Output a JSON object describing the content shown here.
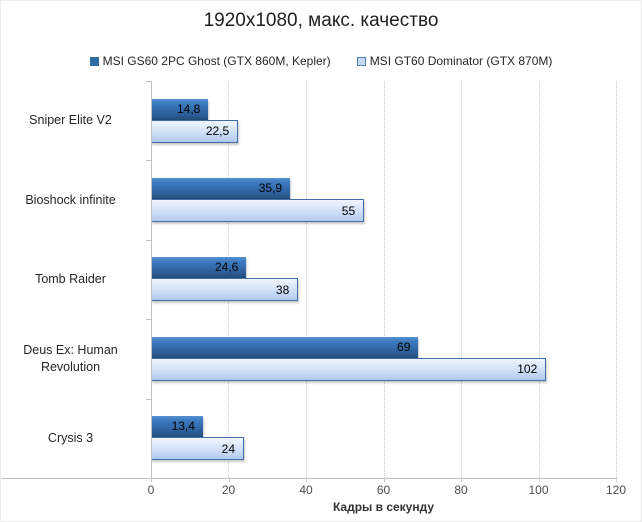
{
  "title": "1920x1080, макс. качество",
  "legend": [
    {
      "label": "MSI GS60 2PC Ghost (GTX 860M, Kepler)",
      "swatch_color": "#2e6da4"
    },
    {
      "label": "MSI GT60 Dominator (GTX 870M)",
      "swatch_color": "#c5d9f1"
    }
  ],
  "chart_data": {
    "type": "bar",
    "orientation": "horizontal",
    "title": "1920x1080, макс. качество",
    "categories": [
      "Sniper Elite V2",
      "Bioshock infinite",
      "Tomb Raider",
      "Deus Ex: Human Revolution",
      "Crysis 3"
    ],
    "series": [
      {
        "name": "MSI GS60 2PC Ghost (GTX 860M, Kepler)",
        "values": [
          14.8,
          35.9,
          24.6,
          69,
          13.4
        ],
        "labels": [
          "14,8",
          "35,9",
          "24,6",
          "69",
          "13,4"
        ],
        "color": "#2d62a0"
      },
      {
        "name": "MSI GT60 Dominator (GTX 870M)",
        "values": [
          22.5,
          55,
          38,
          102,
          24
        ],
        "labels": [
          "22,5",
          "55",
          "38",
          "102",
          "24"
        ],
        "color": "#c5d9f1"
      }
    ],
    "xlabel": "Кадры в секунду",
    "ylabel": "",
    "xlim": [
      0,
      120
    ],
    "xticks": [
      0,
      20,
      40,
      60,
      80,
      100,
      120
    ],
    "grid": true,
    "legend_position": "top"
  }
}
